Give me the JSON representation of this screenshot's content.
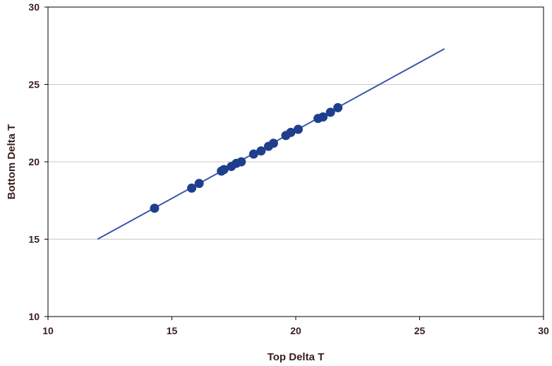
{
  "chart_data": {
    "type": "scatter",
    "title": "",
    "xlabel": "Top Delta T",
    "ylabel": "Bottom Delta T",
    "xlim": [
      10,
      30
    ],
    "ylim": [
      10,
      30
    ],
    "xticks": [
      "10",
      "15",
      "20",
      "25",
      "30"
    ],
    "yticks": [
      "10",
      "15",
      "20",
      "25",
      "30"
    ],
    "grid": "horizontal",
    "legend": "none",
    "series": [
      {
        "kind": "points",
        "color": "#1f3f8c",
        "points": [
          [
            14.3,
            17.0
          ],
          [
            15.8,
            18.3
          ],
          [
            16.1,
            18.6
          ],
          [
            17.0,
            19.4
          ],
          [
            17.1,
            19.5
          ],
          [
            17.4,
            19.7
          ],
          [
            17.6,
            19.9
          ],
          [
            17.8,
            20.0
          ],
          [
            18.3,
            20.5
          ],
          [
            18.6,
            20.7
          ],
          [
            18.9,
            21.0
          ],
          [
            19.1,
            21.2
          ],
          [
            19.6,
            21.7
          ],
          [
            19.8,
            21.9
          ],
          [
            20.1,
            22.1
          ],
          [
            20.9,
            22.8
          ],
          [
            21.1,
            22.9
          ],
          [
            21.4,
            23.2
          ],
          [
            21.7,
            23.5
          ]
        ]
      },
      {
        "kind": "line",
        "color": "#3a56a8",
        "points": [
          [
            12.0,
            15.0
          ],
          [
            26.0,
            27.3
          ]
        ]
      }
    ]
  }
}
